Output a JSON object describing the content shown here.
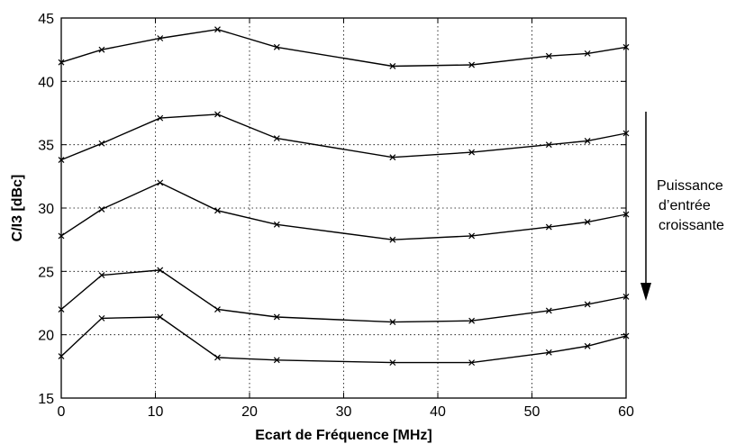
{
  "chart_data": {
    "type": "line",
    "xlabel": "Ecart de Fréquence [MHz]",
    "ylabel": "C/I3 [dBc]",
    "xlim": [
      0,
      60
    ],
    "ylim": [
      15,
      45
    ],
    "xticks": [
      "0",
      "10",
      "20",
      "30",
      "40",
      "50",
      "60"
    ],
    "yticks": [
      "15",
      "20",
      "25",
      "30",
      "35",
      "40",
      "45"
    ],
    "grid": true,
    "marker": "x",
    "line_color": "#000000",
    "x": [
      0,
      4.3,
      10.5,
      16.6,
      22.9,
      35.2,
      43.6,
      51.8,
      55.9,
      60
    ],
    "series": [
      {
        "values": [
          41.5,
          42.5,
          43.4,
          44.1,
          42.7,
          41.2,
          41.3,
          42.0,
          42.2,
          42.7
        ]
      },
      {
        "values": [
          33.8,
          35.1,
          37.1,
          37.4,
          35.5,
          34.0,
          34.4,
          35.0,
          35.3,
          35.9
        ]
      },
      {
        "values": [
          27.8,
          29.9,
          32.0,
          29.8,
          28.7,
          27.5,
          27.8,
          28.5,
          28.9,
          29.5
        ]
      },
      {
        "values": [
          22.0,
          24.7,
          25.1,
          22.0,
          21.4,
          21.0,
          21.1,
          21.9,
          22.4,
          23.0
        ]
      },
      {
        "values": [
          18.3,
          21.3,
          21.4,
          18.2,
          18.0,
          17.8,
          17.8,
          18.6,
          19.1,
          19.9
        ]
      }
    ],
    "annotation": {
      "lines": [
        "Puissance",
        "d’entrée",
        "croissante"
      ],
      "arrow_direction": "down"
    }
  }
}
